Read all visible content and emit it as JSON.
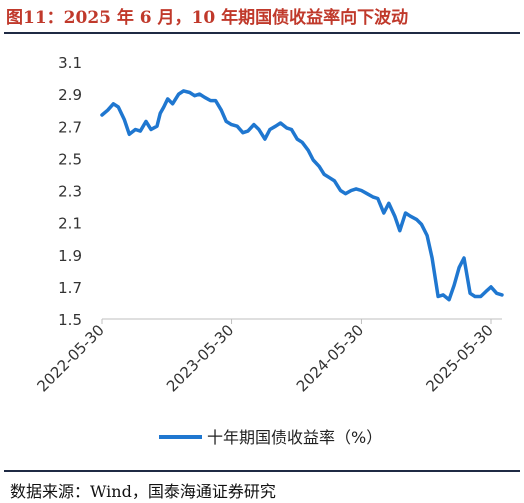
{
  "figure": {
    "title": "图11：2025 年 6 月，10 年期国债收益率向下波动",
    "source": "数据来源：Wind，国泰海通证券研究"
  },
  "colors": {
    "series": "#1f77d0",
    "title": "#c0392b",
    "axis": "#333333",
    "rule": "#1f2a44"
  },
  "chart_data": {
    "type": "line",
    "title": "",
    "xlabel": "",
    "ylabel": "",
    "ylim": [
      1.5,
      3.1
    ],
    "yticks": [
      "3.1",
      "2.9",
      "2.7",
      "2.5",
      "2.3",
      "2.1",
      "1.9",
      "1.7",
      "1.5"
    ],
    "ytick_values": [
      3.1,
      2.9,
      2.7,
      2.5,
      2.3,
      2.1,
      1.9,
      1.7,
      1.5
    ],
    "xticks": [
      "2022-05-30",
      "2023-05-30",
      "2024-05-30",
      "2025-05-30"
    ],
    "xrange": [
      "2022-05-30",
      "2025-06-30"
    ],
    "grid": false,
    "legend_position": "bottom",
    "series": [
      {
        "name": "十年期国债收益率（%）",
        "x": [
          "2022-05-30",
          "2022-06-15",
          "2022-07-01",
          "2022-07-15",
          "2022-08-01",
          "2022-08-15",
          "2022-09-01",
          "2022-09-15",
          "2022-10-01",
          "2022-10-15",
          "2022-11-01",
          "2022-11-10",
          "2022-11-20",
          "2022-12-01",
          "2022-12-15",
          "2023-01-01",
          "2023-01-15",
          "2023-02-01",
          "2023-02-15",
          "2023-03-01",
          "2023-03-15",
          "2023-04-01",
          "2023-04-15",
          "2023-05-01",
          "2023-05-15",
          "2023-05-30",
          "2023-06-15",
          "2023-07-01",
          "2023-07-15",
          "2023-08-01",
          "2023-08-15",
          "2023-09-01",
          "2023-09-15",
          "2023-10-01",
          "2023-10-15",
          "2023-11-01",
          "2023-11-15",
          "2023-12-01",
          "2023-12-15",
          "2024-01-01",
          "2024-01-15",
          "2024-02-01",
          "2024-02-15",
          "2024-03-01",
          "2024-03-15",
          "2024-04-01",
          "2024-04-15",
          "2024-05-01",
          "2024-05-15",
          "2024-05-30",
          "2024-06-15",
          "2024-07-01",
          "2024-07-15",
          "2024-08-01",
          "2024-08-15",
          "2024-09-01",
          "2024-09-15",
          "2024-10-01",
          "2024-10-15",
          "2024-11-01",
          "2024-11-15",
          "2024-12-01",
          "2024-12-15",
          "2025-01-01",
          "2025-01-15",
          "2025-02-01",
          "2025-02-15",
          "2025-03-01",
          "2025-03-15",
          "2025-04-01",
          "2025-04-15",
          "2025-05-01",
          "2025-05-15",
          "2025-05-30",
          "2025-06-15",
          "2025-06-30"
        ],
        "values": [
          2.77,
          2.8,
          2.84,
          2.82,
          2.74,
          2.65,
          2.68,
          2.67,
          2.73,
          2.68,
          2.7,
          2.78,
          2.82,
          2.87,
          2.84,
          2.9,
          2.92,
          2.91,
          2.89,
          2.9,
          2.88,
          2.86,
          2.86,
          2.8,
          2.73,
          2.71,
          2.7,
          2.66,
          2.67,
          2.71,
          2.68,
          2.62,
          2.68,
          2.7,
          2.72,
          2.69,
          2.68,
          2.62,
          2.6,
          2.55,
          2.49,
          2.45,
          2.4,
          2.38,
          2.36,
          2.3,
          2.28,
          2.3,
          2.31,
          2.3,
          2.28,
          2.26,
          2.25,
          2.16,
          2.22,
          2.14,
          2.05,
          2.16,
          2.14,
          2.12,
          2.09,
          2.02,
          1.88,
          1.64,
          1.65,
          1.62,
          1.71,
          1.82,
          1.88,
          1.66,
          1.64,
          1.64,
          1.67,
          1.7,
          1.66,
          1.65
        ]
      }
    ]
  }
}
